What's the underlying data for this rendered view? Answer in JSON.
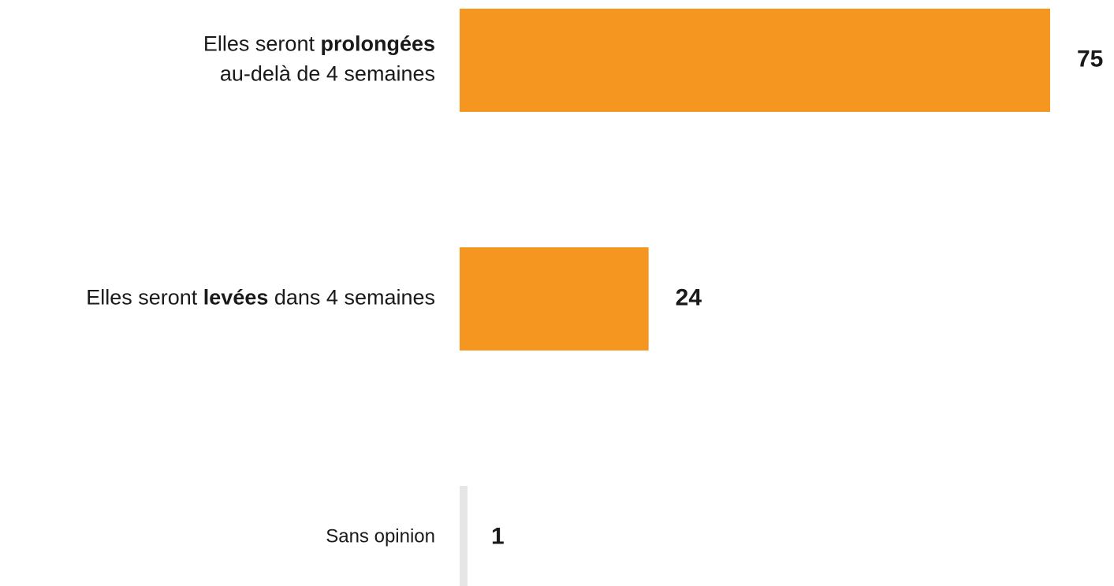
{
  "colors": {
    "bar": "#F59621",
    "small_bar": "#E6E6E6",
    "text": "#1a1a1a"
  },
  "chart_data": {
    "type": "bar",
    "orientation": "horizontal",
    "categories": [
      "Elles seront prolongées au-delà de 4 semaines",
      "Elles seront levées dans 4 semaines",
      "Sans opinion"
    ],
    "category_parts": [
      [
        [
          {
            "text": "Elles seront ",
            "bold": false
          },
          {
            "text": "prolongées",
            "bold": true
          }
        ],
        [
          {
            "text": "au-delà de 4 semaines",
            "bold": false
          }
        ]
      ],
      [
        [
          {
            "text": "Elles seront ",
            "bold": false
          },
          {
            "text": "levées",
            "bold": true
          },
          {
            "text": " dans 4 semaines",
            "bold": false
          }
        ]
      ],
      [
        [
          {
            "text": "Sans opinion",
            "bold": false
          }
        ]
      ]
    ],
    "values": [
      75,
      24,
      1
    ],
    "value_labels": [
      "75",
      "24",
      "1"
    ],
    "xlim": [
      0,
      75
    ],
    "grid": false,
    "legend": "none",
    "title": "",
    "xlabel": "",
    "ylabel": ""
  }
}
